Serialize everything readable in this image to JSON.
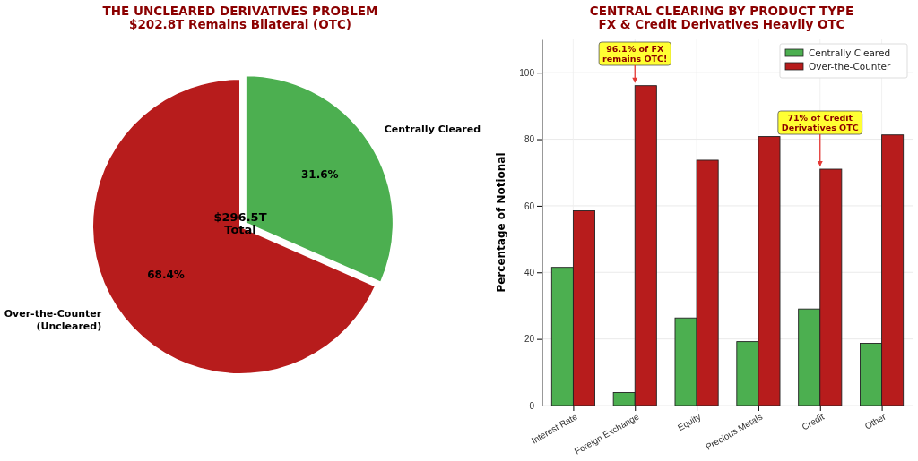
{
  "chart_data": [
    {
      "type": "pie",
      "title": "THE UNCLEARED DERIVATIVES PROBLEM",
      "subtitle": "$202.8T Remains Bilateral (OTC)",
      "categories": [
        "Centrally Cleared",
        "Over-the-Counter\n(Uncleared)"
      ],
      "values": [
        31.6,
        68.4
      ],
      "colors": [
        "#4caf50",
        "#b71c1c"
      ],
      "value_labels": [
        "31.6%",
        "68.4%"
      ],
      "annotations": [
        "$296.5T\nTotal"
      ]
    },
    {
      "type": "bar",
      "title": "CENTRAL CLEARING BY PRODUCT TYPE",
      "subtitle": "FX & Credit Derivatives Heavily OTC",
      "ylabel": "Percentage of Notional",
      "categories": [
        "Interest Rate",
        "Foreign Exchange",
        "Equity",
        "Precious Metals",
        "Credit",
        "Other"
      ],
      "series": [
        {
          "name": "Centrally Cleared",
          "color": "#4caf50",
          "values": [
            41.5,
            3.9,
            26.3,
            19.2,
            29,
            18.7
          ]
        },
        {
          "name": "Over-the-Counter",
          "color": "#b71c1c",
          "values": [
            58.5,
            96.1,
            73.7,
            80.8,
            71,
            81.3
          ]
        }
      ],
      "ylim": [
        0,
        110
      ],
      "yticks": [
        0,
        20,
        40,
        60,
        80,
        100
      ],
      "grid": true,
      "legend": "top right",
      "annotations": [
        {
          "text": "96.1% of FX\nremains OTC!",
          "x": "Foreign Exchange",
          "y": 96.1
        },
        {
          "text": "71% of Credit\nDerivatives OTC",
          "x": "Credit",
          "y": 71
        }
      ]
    }
  ]
}
